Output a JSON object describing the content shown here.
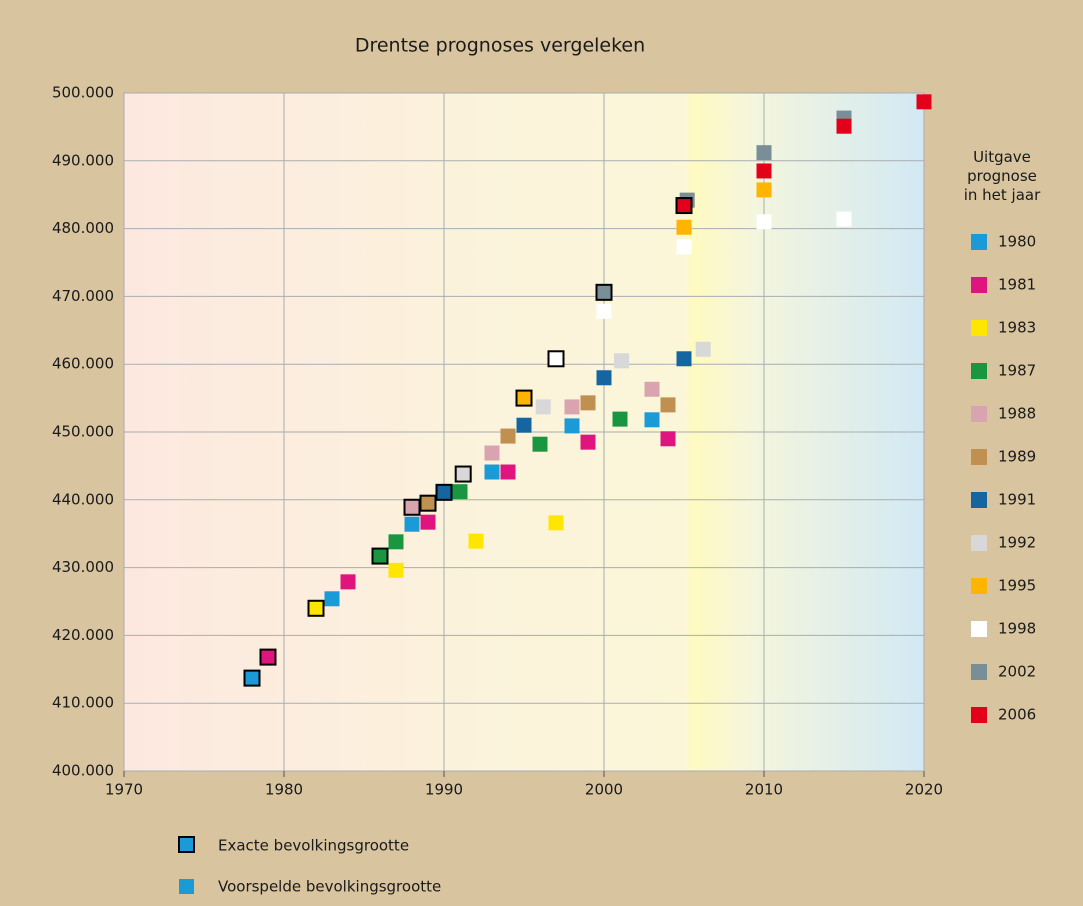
{
  "chart_data": {
    "type": "scatter",
    "title": "Drentse prognoses vergeleken",
    "legend_title": "Uitgave prognose in het jaar",
    "marker_legend": {
      "exact": "Exacte bevolkingsgrootte",
      "predicted": "Voorspelde bevolkingsgrootte"
    },
    "xlim": [
      1970,
      2020
    ],
    "xticks": [
      1970,
      1980,
      1990,
      2000,
      2010,
      2020
    ],
    "ylim": [
      400000,
      500000
    ],
    "yticks": [
      {
        "value": 400000,
        "label": "400.000"
      },
      {
        "value": 410000,
        "label": "410.000"
      },
      {
        "value": 420000,
        "label": "420.000"
      },
      {
        "value": 430000,
        "label": "430.000"
      },
      {
        "value": 440000,
        "label": "440.000"
      },
      {
        "value": 450000,
        "label": "450.000"
      },
      {
        "value": 460000,
        "label": "460.000"
      },
      {
        "value": 470000,
        "label": "470.000"
      },
      {
        "value": 480000,
        "label": "480.000"
      },
      {
        "value": 490000,
        "label": "490.000"
      },
      {
        "value": 500000,
        "label": "500.000"
      }
    ],
    "grid": true,
    "series": [
      {
        "name": "1980",
        "color": "#1a9ad6",
        "exact_x": 1978,
        "exact_value": 413700,
        "x": [
          1983,
          1988,
          1993,
          1998,
          2003
        ],
        "values": [
          425400,
          436400,
          444100,
          450900,
          451800
        ]
      },
      {
        "name": "1981",
        "color": "#e0147e",
        "exact_x": 1979,
        "exact_value": 416800,
        "x": [
          1984,
          1989,
          1994,
          1999,
          2004
        ],
        "values": [
          427900,
          436700,
          444100,
          448500,
          449000
        ]
      },
      {
        "name": "1983",
        "color": "#ffe600",
        "exact_x": 1982,
        "exact_value": 424000,
        "x": [
          1987,
          1992,
          1997
        ],
        "values": [
          429600,
          433900,
          436600
        ]
      },
      {
        "name": "1987",
        "color": "#1a9640",
        "exact_x": 1986,
        "exact_value": 431700,
        "x": [
          1987,
          1991,
          1996,
          2001
        ],
        "values": [
          433800,
          441200,
          448200,
          451900
        ]
      },
      {
        "name": "1988",
        "color": "#d9a4b0",
        "exact_x": 1988,
        "exact_value": 438900,
        "x": [
          1993,
          1998,
          2003
        ],
        "values": [
          446900,
          453700,
          456300
        ]
      },
      {
        "name": "1989",
        "color": "#c09050",
        "exact_x": 1989,
        "exact_value": 439500,
        "x": [
          1994,
          1999,
          2004
        ],
        "values": [
          449400,
          454300,
          454000
        ]
      },
      {
        "name": "1991",
        "color": "#1565a0",
        "exact_x": 1990,
        "exact_value": 441100,
        "x": [
          1995,
          2000,
          2005
        ],
        "values": [
          451000,
          458000,
          460800
        ]
      },
      {
        "name": "1992",
        "color": "#d8d8d8",
        "exact_x": 1991.2,
        "exact_value": 443800,
        "x": [
          1996.2,
          2001.1,
          2006.2
        ],
        "values": [
          453700,
          460500,
          462200
        ]
      },
      {
        "name": "1995",
        "color": "#ffb400",
        "exact_x": 1995,
        "exact_value": 455000,
        "x": [
          2005,
          2010
        ],
        "values": [
          480200,
          485700
        ]
      },
      {
        "name": "1998",
        "color": "#ffffff",
        "exact_x": 1997,
        "exact_value": 460800,
        "x": [
          2000,
          2005,
          2010,
          2015
        ],
        "values": [
          467800,
          477300,
          481000,
          481400
        ]
      },
      {
        "name": "2002",
        "color": "#7a8e98",
        "exact_x": 2000,
        "exact_value": 470600,
        "x": [
          2005.2,
          2010,
          2015
        ],
        "values": [
          484200,
          491200,
          496300
        ]
      },
      {
        "name": "2006",
        "color": "#e2001a",
        "exact_x": 2005,
        "exact_value": 483400,
        "x": [
          2010,
          2015,
          2020
        ],
        "values": [
          488500,
          495100,
          498700
        ]
      }
    ]
  }
}
